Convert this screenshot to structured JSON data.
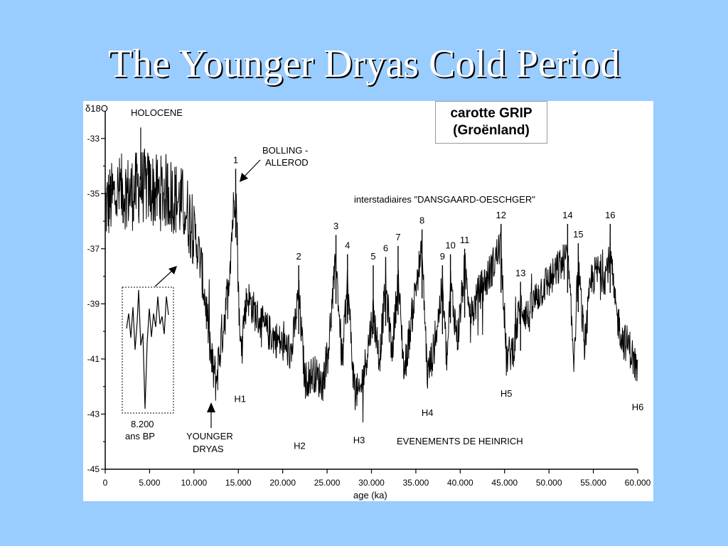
{
  "slide": {
    "title": "The Younger Dryas Cold Period"
  },
  "colors": {
    "background": "#99ccff",
    "panel": "#ffffff",
    "trace": "#000000"
  },
  "chart_data": {
    "type": "line",
    "title": "",
    "ylabel": "δ18O",
    "xlabel": "age (ka)",
    "xlim": [
      0,
      60000
    ],
    "ylim": [
      -45,
      -32
    ],
    "x_ticks": [
      "0",
      "5.000",
      "10.000",
      "15.000",
      "20.000",
      "25.000",
      "30.000",
      "35.000",
      "40.000",
      "45.000",
      "50.000",
      "55.000",
      "60.000"
    ],
    "y_ticks": [
      "-33",
      "-35",
      "-37",
      "-39",
      "-41",
      "-43",
      "-45"
    ],
    "core_label": [
      "carotte GRIP",
      "(Groënland)"
    ],
    "annotations": {
      "holocene": "HOLOCENE",
      "bolling": [
        "BOLLING -",
        "ALLEROD"
      ],
      "dansgaard": "interstadiaires \"DANSGAARD-OESCHGER\"",
      "younger_dryas": [
        "YOUNGER",
        "DRYAS"
      ],
      "inset": [
        "8.200",
        "ans BP"
      ],
      "heinrich": "EVENEMENTS DE HEINRICH"
    },
    "interstadials": [
      {
        "label": "1",
        "x": 14700,
        "y": -34.1
      },
      {
        "label": "2",
        "x": 21800,
        "y": -37.6
      },
      {
        "label": "3",
        "x": 26000,
        "y": -36.5
      },
      {
        "label": "4",
        "x": 27300,
        "y": -37.2
      },
      {
        "label": "5",
        "x": 30200,
        "y": -37.6
      },
      {
        "label": "6",
        "x": 31600,
        "y": -37.3
      },
      {
        "label": "7",
        "x": 33000,
        "y": -36.9
      },
      {
        "label": "8",
        "x": 35700,
        "y": -36.3
      },
      {
        "label": "9",
        "x": 38000,
        "y": -37.6
      },
      {
        "label": "10",
        "x": 38900,
        "y": -37.2
      },
      {
        "label": "11",
        "x": 40500,
        "y": -37.0
      },
      {
        "label": "12",
        "x": 44600,
        "y": -36.1
      },
      {
        "label": "13",
        "x": 46800,
        "y": -38.2
      },
      {
        "label": "14",
        "x": 52100,
        "y": -36.1
      },
      {
        "label": "15",
        "x": 53300,
        "y": -36.8
      },
      {
        "label": "16",
        "x": 56900,
        "y": -36.1
      }
    ],
    "heinrich_events": [
      {
        "label": "H1",
        "x": 15200,
        "y": -42.1
      },
      {
        "label": "H2",
        "x": 21900,
        "y": -43.8
      },
      {
        "label": "H3",
        "x": 28600,
        "y": -43.6
      },
      {
        "label": "H4",
        "x": 36300,
        "y": -42.6
      },
      {
        "label": "H5",
        "x": 45200,
        "y": -41.9
      },
      {
        "label": "H6",
        "x": 60000,
        "y": -42.4
      }
    ],
    "series": [
      {
        "x": [
          0,
          1000,
          2000,
          3000,
          4000,
          5000,
          6000,
          7000,
          8000,
          9000,
          10000,
          10800,
          11500,
          12000,
          12500,
          13000,
          13800,
          14300,
          14700,
          15200,
          16000,
          17000,
          18000,
          19000,
          20000,
          21000,
          21800,
          22500,
          23500,
          24500,
          25200,
          26000,
          26700,
          27300,
          28000,
          28600,
          29300,
          30200,
          30900,
          31600,
          32300,
          33000,
          33700,
          34500,
          35200,
          35700,
          36300,
          37000,
          38000,
          38500,
          38900,
          39700,
          40500,
          41300,
          42100,
          43000,
          43700,
          44600,
          45200,
          46000,
          46800,
          47700,
          48500,
          49500,
          50500,
          51300,
          52100,
          52800,
          53300,
          54000,
          54800,
          55600,
          56300,
          56900,
          57500,
          58300,
          59000,
          60000
        ],
        "y": [
          -35.5,
          -35.1,
          -34.9,
          -35.0,
          -34.7,
          -34.8,
          -35.0,
          -34.9,
          -35.2,
          -35.5,
          -36.3,
          -37.6,
          -39.5,
          -41.2,
          -41.8,
          -40.5,
          -38.6,
          -36.2,
          -34.6,
          -40.6,
          -38.7,
          -39.4,
          -39.9,
          -40.2,
          -40.5,
          -40.8,
          -38.6,
          -41.8,
          -41.5,
          -41.9,
          -40.4,
          -37.4,
          -41.2,
          -38.2,
          -41.8,
          -42.4,
          -41.2,
          -39.3,
          -41.0,
          -38.3,
          -40.8,
          -38.1,
          -41.5,
          -39.6,
          -37.9,
          -37.2,
          -41.6,
          -40.7,
          -38.4,
          -41.2,
          -38.3,
          -40.3,
          -37.7,
          -39.4,
          -38.6,
          -38.1,
          -37.6,
          -36.8,
          -41.0,
          -40.6,
          -39.0,
          -39.5,
          -38.8,
          -38.3,
          -38.0,
          -37.6,
          -37.3,
          -41.0,
          -37.6,
          -40.5,
          -38.1,
          -37.8,
          -38.0,
          -37.2,
          -39.2,
          -40.3,
          -40.5,
          -41.5
        ]
      }
    ]
  }
}
